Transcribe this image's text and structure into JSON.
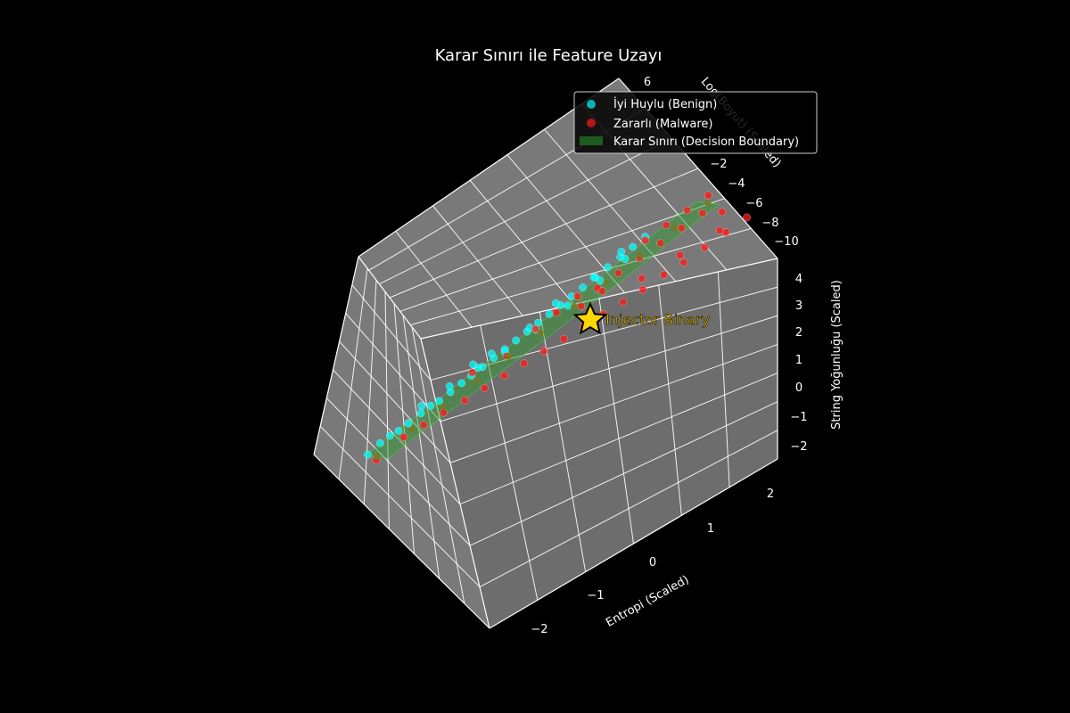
{
  "chart_data": {
    "type": "scatter",
    "title": "Karar Sınırı ile Feature Uzayı",
    "xlabel": "Entropi (Scaled)",
    "ylabel": "Log(Boyut) (Scaled)",
    "zlabel": "String Yoğunluğu (Scaled)",
    "x_ticks": [
      "−2",
      "−1",
      "0",
      "1",
      "2"
    ],
    "y_ticks": [
      "6",
      "−2",
      "−4",
      "−6",
      "−8",
      "−10"
    ],
    "z_ticks": [
      "4",
      "3",
      "2",
      "1",
      "0",
      "−1",
      "−2"
    ],
    "xlim": [
      -2.4,
      2.4
    ],
    "ylim": [
      -10.5,
      6.5
    ],
    "zlim": [
      -2.4,
      4.4
    ],
    "grid": true,
    "legend_position": "top-right",
    "legend": [
      {
        "label": "İyi Huylu (Benign)",
        "color": "#00d4d4"
      },
      {
        "label": "Zararlı (Malware)",
        "color": "#d41818"
      },
      {
        "label": "Karar Sınırı (Decision Boundary)",
        "color": "#1f5a1f"
      }
    ],
    "annotation": {
      "label": "Injector Binary",
      "color": "#ffd700"
    },
    "series": [
      {
        "name": "İyi Huylu (Benign)",
        "color": "#00ffff",
        "points": [
          [
            -1.9,
            5.5,
            -1.3
          ],
          [
            -1.8,
            5.2,
            -1.0
          ],
          [
            -1.7,
            5.0,
            -0.8
          ],
          [
            -1.6,
            4.8,
            -0.7
          ],
          [
            -1.5,
            4.6,
            -0.5
          ],
          [
            -1.4,
            4.2,
            -0.3
          ],
          [
            -1.3,
            4.0,
            -0.1
          ],
          [
            -1.2,
            3.8,
            0.0
          ],
          [
            -1.1,
            3.5,
            0.2
          ],
          [
            -1.0,
            3.2,
            0.4
          ],
          [
            -0.9,
            3.0,
            0.6
          ],
          [
            -0.8,
            2.7,
            0.8
          ],
          [
            -0.7,
            2.4,
            1.0
          ],
          [
            -0.6,
            2.1,
            1.2
          ],
          [
            -0.5,
            1.8,
            1.4
          ],
          [
            -0.4,
            1.5,
            1.6
          ],
          [
            -0.3,
            1.2,
            1.8
          ],
          [
            -0.2,
            0.9,
            2.0
          ],
          [
            -0.1,
            0.6,
            2.2
          ],
          [
            0.0,
            0.3,
            2.4
          ],
          [
            0.1,
            0.0,
            2.6
          ],
          [
            0.2,
            -0.4,
            2.8
          ],
          [
            0.3,
            -0.8,
            3.0
          ],
          [
            0.4,
            -1.2,
            3.2
          ],
          [
            0.5,
            -1.6,
            3.4
          ],
          [
            0.6,
            -2.0,
            3.6
          ],
          [
            -1.5,
            3.9,
            -0.2
          ],
          [
            -1.2,
            3.3,
            0.3
          ],
          [
            -0.9,
            2.6,
            0.7
          ],
          [
            -0.6,
            1.9,
            1.0
          ],
          [
            -0.3,
            1.1,
            1.5
          ],
          [
            0.0,
            0.2,
            2.0
          ],
          [
            0.3,
            -0.6,
            2.6
          ],
          [
            0.5,
            -1.3,
            3.1
          ],
          [
            -1.0,
            2.8,
            0.9
          ],
          [
            -0.8,
            2.3,
            1.1
          ],
          [
            -0.4,
            1.4,
            1.7
          ],
          [
            -0.2,
            0.7,
            2.3
          ],
          [
            0.2,
            -0.2,
            2.9
          ],
          [
            0.4,
            -1.0,
            3.5
          ]
        ]
      },
      {
        "name": "Zararlı (Malware)",
        "color": "#ff1a1a",
        "points": [
          [
            -1.6,
            6.0,
            -1.2
          ],
          [
            -1.4,
            5.0,
            -0.8
          ],
          [
            -1.2,
            4.4,
            -0.6
          ],
          [
            -1.0,
            3.8,
            -0.4
          ],
          [
            -0.8,
            3.0,
            -0.3
          ],
          [
            -0.6,
            2.4,
            -0.1
          ],
          [
            -0.4,
            1.8,
            0.1
          ],
          [
            -0.2,
            1.2,
            0.3
          ],
          [
            0.0,
            0.6,
            0.5
          ],
          [
            0.2,
            0.0,
            0.7
          ],
          [
            0.4,
            -0.6,
            0.9
          ],
          [
            0.6,
            -1.2,
            1.1
          ],
          [
            0.8,
            -1.8,
            1.3
          ],
          [
            1.0,
            -2.4,
            1.5
          ],
          [
            1.2,
            -3.0,
            1.8
          ],
          [
            1.4,
            -3.6,
            2.0
          ],
          [
            1.6,
            -4.2,
            2.3
          ],
          [
            1.8,
            -4.8,
            2.6
          ],
          [
            2.0,
            -5.4,
            2.9
          ],
          [
            0.2,
            -1.4,
            1.9
          ],
          [
            0.4,
            -2.0,
            2.2
          ],
          [
            0.6,
            -2.6,
            2.5
          ],
          [
            0.8,
            -3.2,
            2.8
          ],
          [
            1.0,
            -3.8,
            3.1
          ],
          [
            1.2,
            -4.4,
            3.4
          ],
          [
            -0.4,
            0.5,
            1.2
          ],
          [
            -0.2,
            0.0,
            1.6
          ],
          [
            0.0,
            -0.5,
            2.0
          ],
          [
            0.5,
            -2.9,
            3.0
          ],
          [
            0.7,
            -3.5,
            3.3
          ],
          [
            0.9,
            -4.1,
            3.6
          ],
          [
            1.1,
            -4.7,
            3.9
          ],
          [
            -0.6,
            1.4,
            0.6
          ],
          [
            0.1,
            -1.0,
            1.4
          ],
          [
            0.3,
            -1.6,
            1.7
          ],
          [
            -1.0,
            2.4,
            0.4
          ],
          [
            0.9,
            -2.2,
            2.0
          ],
          [
            1.3,
            -3.3,
            2.4
          ],
          [
            1.7,
            -4.5,
            2.8
          ],
          [
            1.5,
            -5.0,
            3.2
          ]
        ]
      },
      {
        "name": "Karar Sınırı (Decision Boundary)",
        "color": "#3fae3f",
        "points": [
          [
            -1.7,
            5.4,
            -1.4
          ],
          [
            -1.4,
            4.4,
            -0.8
          ],
          [
            -1.1,
            3.6,
            -0.3
          ],
          [
            -0.8,
            2.7,
            0.3
          ],
          [
            -0.5,
            1.8,
            0.8
          ],
          [
            -0.2,
            0.9,
            1.3
          ],
          [
            0.1,
            0.0,
            1.9
          ],
          [
            0.4,
            -0.9,
            2.4
          ],
          [
            0.7,
            -1.8,
            3.0
          ],
          [
            1.0,
            -2.8,
            3.6
          ],
          [
            1.3,
            -3.8,
            4.1
          ]
        ]
      }
    ],
    "highlight_point": [
      0.25,
      -0.6,
      2.25
    ]
  }
}
